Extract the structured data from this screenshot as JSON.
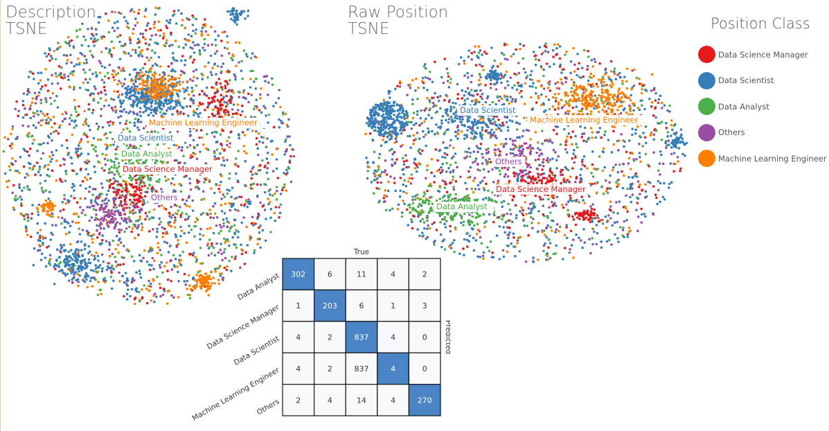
{
  "colors": {
    "Data Science Manager": "#e41a1c",
    "Data Scientist": "#377eb8",
    "Data Analyst": "#4daf4a",
    "Others": "#984ea3",
    "Machine Learning Engineer": "#ff7f00"
  },
  "legend": {
    "title": "Position Class",
    "items": [
      "Data Science Manager",
      "Data Scientist",
      "Data Analyst",
      "Others",
      "Machine Learning Engineer"
    ]
  },
  "chart_data": [
    {
      "type": "scatter",
      "title": "Description",
      "subtitle": "TSNE",
      "cluster_labels": [
        {
          "text": "Machine Learning Engineer",
          "class": "Machine Learning Engineer"
        },
        {
          "text": "Data Scientist",
          "class": "Data Scientist"
        },
        {
          "text": "Data Analyst",
          "class": "Data Analyst"
        },
        {
          "text": "Data Science Manager",
          "class": "Data Science Manager"
        },
        {
          "text": "Others",
          "class": "Others"
        }
      ]
    },
    {
      "type": "scatter",
      "title": "Raw Position",
      "subtitle": "TSNE",
      "cluster_labels": [
        {
          "text": "Data Scientist",
          "class": "Data Scientist"
        },
        {
          "text": "Machine Learning Engineer",
          "class": "Machine Learning Engineer"
        },
        {
          "text": "Others",
          "class": "Others"
        },
        {
          "text": "Data Science Manager",
          "class": "Data Science Manager"
        },
        {
          "text": "Data Analyst",
          "class": "Data Analyst"
        }
      ]
    },
    {
      "type": "heatmap",
      "title": "",
      "xlabel": "True",
      "ylabel": "Predicted",
      "row_labels": [
        "Data Analyst",
        "Data Science Manager",
        "Data Scientist",
        "Machine Learning Engineer",
        "Others"
      ],
      "values": [
        [
          302,
          6,
          11,
          4,
          2
        ],
        [
          1,
          203,
          6,
          1,
          3
        ],
        [
          4,
          2,
          837,
          4,
          0
        ],
        [
          4,
          2,
          837,
          4,
          0
        ],
        [
          2,
          4,
          14,
          4,
          270
        ]
      ],
      "highlight_diagonal": true
    }
  ]
}
